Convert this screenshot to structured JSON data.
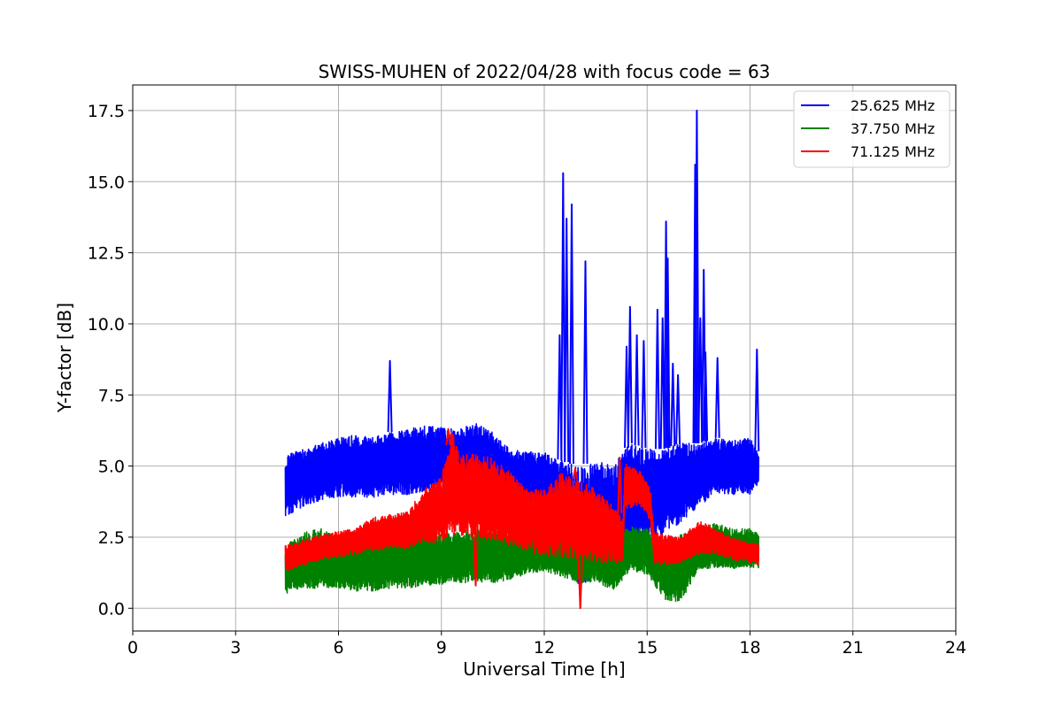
{
  "chart_data": {
    "type": "line",
    "title": "SWISS-MUHEN of 2022/04/28 with focus code = 63",
    "xlabel": "Universal Time [h]",
    "ylabel": "Y-factor [dB]",
    "xlim": [
      0,
      24
    ],
    "ylim": [
      -0.8,
      18.4
    ],
    "xticks": [
      0,
      3,
      6,
      9,
      12,
      15,
      18,
      21,
      24
    ],
    "xtick_labels": [
      "0",
      "3",
      "6",
      "9",
      "12",
      "15",
      "18",
      "21",
      "24"
    ],
    "yticks": [
      0,
      2.5,
      5,
      7.5,
      10,
      12.5,
      15,
      17.5
    ],
    "ytick_labels": [
      "0.0",
      "2.5",
      "5.0",
      "7.5",
      "10.0",
      "12.5",
      "15.0",
      "17.5"
    ],
    "grid": true,
    "legend_position": "top-right",
    "series": [
      {
        "name": "25.625 MHz",
        "color": "#0000ff",
        "band": [
          [
            4.45,
            3.2,
            5.4
          ],
          [
            5.0,
            3.6,
            5.6
          ],
          [
            5.5,
            3.8,
            5.8
          ],
          [
            6.0,
            3.9,
            6.0
          ],
          [
            6.5,
            3.9,
            6.1
          ],
          [
            7.0,
            3.9,
            6.0
          ],
          [
            7.5,
            4.0,
            6.2
          ],
          [
            8.0,
            4.0,
            6.3
          ],
          [
            8.5,
            4.1,
            6.4
          ],
          [
            9.0,
            4.2,
            6.4
          ],
          [
            9.5,
            4.0,
            6.3
          ],
          [
            10.0,
            3.9,
            6.5
          ],
          [
            10.5,
            3.8,
            6.2
          ],
          [
            11.0,
            3.6,
            5.6
          ],
          [
            11.5,
            3.5,
            5.5
          ],
          [
            12.0,
            3.4,
            5.5
          ],
          [
            12.5,
            2.0,
            5.2
          ],
          [
            13.0,
            0.8,
            5.0
          ],
          [
            13.5,
            1.0,
            5.2
          ],
          [
            14.0,
            1.8,
            5.0
          ],
          [
            14.5,
            2.0,
            5.8
          ],
          [
            15.0,
            2.4,
            5.6
          ],
          [
            15.5,
            2.6,
            5.6
          ],
          [
            16.0,
            3.0,
            5.8
          ],
          [
            16.5,
            3.6,
            5.8
          ],
          [
            17.0,
            4.0,
            6.0
          ],
          [
            17.5,
            4.0,
            5.9
          ],
          [
            18.0,
            4.0,
            6.0
          ],
          [
            18.25,
            4.4,
            5.4
          ]
        ],
        "spikes": [
          [
            7.5,
            8.7
          ],
          [
            12.45,
            9.6
          ],
          [
            12.55,
            15.3
          ],
          [
            12.65,
            13.7
          ],
          [
            12.8,
            14.2
          ],
          [
            13.2,
            12.2
          ],
          [
            14.4,
            9.2
          ],
          [
            14.5,
            10.6
          ],
          [
            14.7,
            9.6
          ],
          [
            14.9,
            9.4
          ],
          [
            15.3,
            10.5
          ],
          [
            15.45,
            10.2
          ],
          [
            15.55,
            13.6
          ],
          [
            15.6,
            12.3
          ],
          [
            15.75,
            8.6
          ],
          [
            15.9,
            8.2
          ],
          [
            16.4,
            15.6
          ],
          [
            16.45,
            17.5
          ],
          [
            16.55,
            10.2
          ],
          [
            16.65,
            11.9
          ],
          [
            16.7,
            9.0
          ],
          [
            17.05,
            8.8
          ],
          [
            18.2,
            9.1
          ]
        ]
      },
      {
        "name": "37.750 MHz",
        "color": "#008000",
        "band": [
          [
            4.45,
            0.5,
            2.2
          ],
          [
            5.0,
            0.7,
            2.7
          ],
          [
            5.5,
            0.7,
            2.8
          ],
          [
            6.0,
            0.7,
            2.5
          ],
          [
            6.5,
            0.6,
            2.5
          ],
          [
            7.0,
            0.6,
            2.6
          ],
          [
            7.5,
            0.7,
            2.6
          ],
          [
            8.0,
            0.7,
            2.7
          ],
          [
            8.5,
            0.8,
            2.7
          ],
          [
            9.0,
            0.8,
            2.6
          ],
          [
            9.5,
            0.9,
            2.7
          ],
          [
            10.0,
            0.9,
            2.8
          ],
          [
            10.5,
            0.9,
            2.8
          ],
          [
            11.0,
            1.0,
            2.6
          ],
          [
            11.5,
            1.2,
            2.6
          ],
          [
            12.0,
            1.3,
            2.6
          ],
          [
            12.5,
            1.1,
            2.6
          ],
          [
            13.0,
            0.9,
            2.5
          ],
          [
            13.5,
            0.9,
            2.6
          ],
          [
            14.0,
            0.6,
            2.4
          ],
          [
            14.5,
            1.3,
            2.9
          ],
          [
            15.0,
            1.2,
            2.8
          ],
          [
            15.5,
            0.3,
            2.4
          ],
          [
            16.0,
            0.2,
            2.6
          ],
          [
            16.5,
            1.4,
            2.9
          ],
          [
            17.0,
            1.4,
            3.0
          ],
          [
            17.5,
            1.4,
            2.8
          ],
          [
            18.0,
            1.4,
            2.8
          ],
          [
            18.25,
            1.4,
            2.7
          ]
        ],
        "spikes": []
      },
      {
        "name": "71.125 MHz",
        "color": "#ff0000",
        "band": [
          [
            4.45,
            1.3,
            2.2
          ],
          [
            5.0,
            1.5,
            2.4
          ],
          [
            5.5,
            1.7,
            2.6
          ],
          [
            6.0,
            1.8,
            2.7
          ],
          [
            6.5,
            1.9,
            2.8
          ],
          [
            7.0,
            2.0,
            3.2
          ],
          [
            7.5,
            2.1,
            3.3
          ],
          [
            8.0,
            2.1,
            3.4
          ],
          [
            8.5,
            2.3,
            4.2
          ],
          [
            9.0,
            2.3,
            4.6
          ],
          [
            9.3,
            2.6,
            6.3
          ],
          [
            9.5,
            2.5,
            5.5
          ],
          [
            10.0,
            2.4,
            5.4
          ],
          [
            10.5,
            2.4,
            5.3
          ],
          [
            11.0,
            2.2,
            4.8
          ],
          [
            11.5,
            2.0,
            4.2
          ],
          [
            12.0,
            1.8,
            4.2
          ],
          [
            12.5,
            1.8,
            4.8
          ],
          [
            13.0,
            1.7,
            4.5
          ],
          [
            13.5,
            1.6,
            4.2
          ],
          [
            14.0,
            1.6,
            3.6
          ],
          [
            14.3,
            1.6,
            3.2
          ],
          [
            14.35,
            3.5,
            5.1
          ],
          [
            14.8,
            3.6,
            4.8
          ],
          [
            15.1,
            3.0,
            4.2
          ],
          [
            15.2,
            1.5,
            2.7
          ],
          [
            15.5,
            1.5,
            2.6
          ],
          [
            16.0,
            1.6,
            2.5
          ],
          [
            16.5,
            1.9,
            3.1
          ],
          [
            17.0,
            1.9,
            2.8
          ],
          [
            17.5,
            1.7,
            2.5
          ],
          [
            18.0,
            1.6,
            2.3
          ],
          [
            18.25,
            1.5,
            2.3
          ]
        ],
        "spikes": [
          [
            9.2,
            6.3
          ],
          [
            10.0,
            0.8
          ],
          [
            13.05,
            0.0
          ],
          [
            12.9,
            4.9
          ],
          [
            14.2,
            5.3
          ]
        ]
      }
    ]
  }
}
